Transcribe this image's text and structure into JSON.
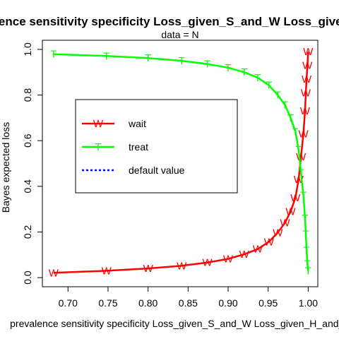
{
  "chart_data": {
    "type": "line",
    "title": "prevalence sensitivity specificity Loss_given_S_and_W Loss_given_H_and_T",
    "subtitle": "data =  N",
    "xlabel": "prevalence sensitivity specificity Loss_given_S_and_W Loss_given_H_and_T",
    "ylabel": "Bayes expected loss",
    "xlim": [
      0.668,
      1.012
    ],
    "ylim": [
      -0.04,
      1.04
    ],
    "xticks": [
      0.7,
      0.75,
      0.8,
      0.85,
      0.9,
      0.95,
      1.0
    ],
    "xtick_labels": [
      "0.70",
      "0.75",
      "0.80",
      "0.85",
      "0.90",
      "0.95",
      "1.00"
    ],
    "yticks": [
      0.0,
      0.2,
      0.4,
      0.6,
      0.8,
      1.0
    ],
    "ytick_labels": [
      "0.0",
      "0.2",
      "0.4",
      "0.6",
      "0.8",
      "1.0"
    ],
    "grid": false,
    "legend_position": "center-left",
    "series": [
      {
        "name": "wait",
        "color": "#ff0000",
        "line": "solid",
        "marker": "W",
        "x": [
          0.682,
          0.748,
          0.8,
          0.842,
          0.874,
          0.9,
          0.92,
          0.937,
          0.951,
          0.962,
          0.971,
          0.978,
          0.984,
          0.988,
          0.991,
          0.994,
          0.996,
          0.997,
          0.998,
          0.999,
          1.0
        ],
        "y": [
          0.021,
          0.03,
          0.04,
          0.052,
          0.066,
          0.082,
          0.102,
          0.125,
          0.157,
          0.197,
          0.24,
          0.29,
          0.35,
          0.43,
          0.53,
          0.63,
          0.73,
          0.81,
          0.87,
          0.93,
          0.99
        ]
      },
      {
        "name": "treat",
        "color": "#00ff00",
        "line": "solid",
        "marker": "T",
        "x": [
          0.682,
          0.748,
          0.8,
          0.842,
          0.874,
          0.9,
          0.92,
          0.937,
          0.951,
          0.962,
          0.971,
          0.978,
          0.984,
          0.988,
          0.991,
          0.994,
          0.996,
          0.997,
          0.998,
          0.999,
          1.0
        ],
        "y": [
          0.979,
          0.971,
          0.962,
          0.95,
          0.936,
          0.92,
          0.9,
          0.876,
          0.843,
          0.8,
          0.757,
          0.7,
          0.64,
          0.56,
          0.46,
          0.36,
          0.26,
          0.19,
          0.12,
          0.06,
          0.03
        ]
      },
      {
        "name": "default value",
        "color": "#0000ff",
        "line": "dotted",
        "marker": "",
        "x": [],
        "y": []
      }
    ]
  }
}
